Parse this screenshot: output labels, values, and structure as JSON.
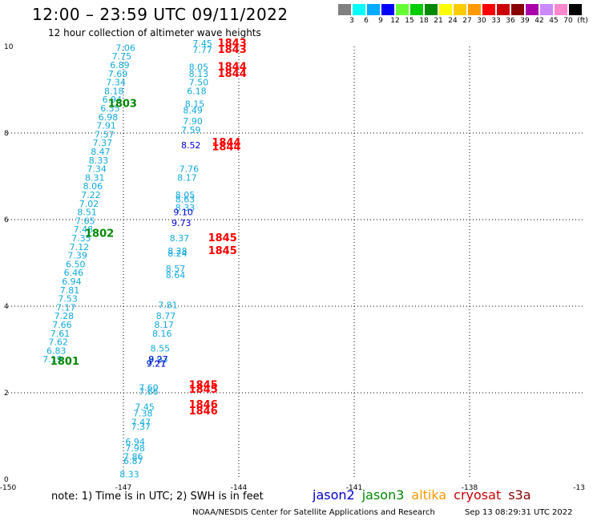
{
  "header": {
    "title": "12:00 – 23:59 UTC 09/11/2022",
    "subtitle": "12 hour collection of altimeter wave heights"
  },
  "color_scale": {
    "labels": [
      "3",
      "6",
      "9",
      "12",
      "15",
      "18",
      "21",
      "24",
      "27",
      "30",
      "33",
      "36",
      "39",
      "42",
      "45",
      "70",
      "(ft)"
    ],
    "colors": [
      "#808080",
      "#00ffff",
      "#00aaff",
      "#0000ff",
      "#66ff33",
      "#00cc00",
      "#008800",
      "#ffff00",
      "#ffcc00",
      "#ff9900",
      "#ff0000",
      "#cc0000",
      "#880000",
      "#aa00aa",
      "#cc88ff",
      "#ff88cc",
      "#000000"
    ]
  },
  "footer": {
    "note": "note: 1) Time is in UTC; 2) SWH is in feet",
    "credit": "NOAA/NESDIS Center for Satellite Applications and Research",
    "timestamp": "Sep 13 08:29:31 UTC 2022"
  },
  "satellites": [
    {
      "name": "jason2",
      "color": "#0000cc"
    },
    {
      "name": "jason3",
      "color": "#008800"
    },
    {
      "name": "altika",
      "color": "#ff9900"
    },
    {
      "name": "cryosat",
      "color": "#cc0000"
    },
    {
      "name": "s3a",
      "color": "#880000"
    }
  ],
  "chart_data": {
    "type": "scatter",
    "title": "12 hour collection of altimeter wave heights",
    "x_ticks": [
      "-150",
      "-147",
      "-144",
      "-141",
      "-138",
      "-13"
    ],
    "y_ticks": [
      "0",
      "2",
      "4",
      "6",
      "8",
      "10"
    ],
    "xlim": [
      -150,
      -135
    ],
    "ylim": [
      0,
      10
    ],
    "grid": true,
    "series": [
      {
        "color": "#11aadd",
        "points": [
          {
            "x": -147.2,
            "y": 9.9,
            "label": "7.06"
          },
          {
            "x": -147.3,
            "y": 9.7,
            "label": "7.75"
          },
          {
            "x": -147.35,
            "y": 9.5,
            "label": "6.89"
          },
          {
            "x": -147.4,
            "y": 9.3,
            "label": "7.69"
          },
          {
            "x": -147.45,
            "y": 9.1,
            "label": "7.34"
          },
          {
            "x": -147.5,
            "y": 8.9,
            "label": "8.18"
          },
          {
            "x": -147.55,
            "y": 8.7,
            "label": "6.94"
          },
          {
            "x": -147.6,
            "y": 8.5,
            "label": "6.35"
          },
          {
            "x": -147.65,
            "y": 8.3,
            "label": "6.98"
          },
          {
            "x": -147.7,
            "y": 8.1,
            "label": "7.91"
          },
          {
            "x": -147.75,
            "y": 7.9,
            "label": "7.57"
          },
          {
            "x": -147.8,
            "y": 7.7,
            "label": "7.37"
          },
          {
            "x": -147.85,
            "y": 7.5,
            "label": "8.47"
          },
          {
            "x": -147.9,
            "y": 7.3,
            "label": "8.33"
          },
          {
            "x": -147.95,
            "y": 7.1,
            "label": "7.34"
          },
          {
            "x": -148.0,
            "y": 6.9,
            "label": "8.31"
          },
          {
            "x": -148.05,
            "y": 6.7,
            "label": "8.06"
          },
          {
            "x": -148.1,
            "y": 6.5,
            "label": "7.22"
          },
          {
            "x": -148.15,
            "y": 6.3,
            "label": "7.02"
          },
          {
            "x": -148.2,
            "y": 6.1,
            "label": "8.51"
          },
          {
            "x": -148.25,
            "y": 5.9,
            "label": "7.65"
          },
          {
            "x": -148.3,
            "y": 5.7,
            "label": "7.48"
          },
          {
            "x": -148.35,
            "y": 5.5,
            "label": "7.35"
          },
          {
            "x": -148.4,
            "y": 5.3,
            "label": "7.12"
          },
          {
            "x": -148.45,
            "y": 5.1,
            "label": "7.39"
          },
          {
            "x": -148.5,
            "y": 4.9,
            "label": "6.50"
          },
          {
            "x": -148.55,
            "y": 4.7,
            "label": "6.46"
          },
          {
            "x": -148.6,
            "y": 4.5,
            "label": "6.94"
          },
          {
            "x": -148.65,
            "y": 4.3,
            "label": "7.81"
          },
          {
            "x": -148.7,
            "y": 4.1,
            "label": "7.53"
          },
          {
            "x": -148.75,
            "y": 3.9,
            "label": "7.17"
          },
          {
            "x": -148.8,
            "y": 3.7,
            "label": "7.28"
          },
          {
            "x": -148.85,
            "y": 3.5,
            "label": "7.66"
          },
          {
            "x": -148.9,
            "y": 3.3,
            "label": "7.61"
          },
          {
            "x": -148.95,
            "y": 3.1,
            "label": "7.62"
          },
          {
            "x": -149.0,
            "y": 2.9,
            "label": "6.83"
          },
          {
            "x": -149.1,
            "y": 2.7,
            "label": "7.19"
          },
          {
            "x": -145.2,
            "y": 10.0,
            "label": "7.45"
          },
          {
            "x": -145.2,
            "y": 9.85,
            "label": "7.77"
          },
          {
            "x": -145.3,
            "y": 9.45,
            "label": "8.05"
          },
          {
            "x": -145.3,
            "y": 9.3,
            "label": "8.13"
          },
          {
            "x": -145.3,
            "y": 9.1,
            "label": "7.50"
          },
          {
            "x": -145.35,
            "y": 8.9,
            "label": "6.18"
          },
          {
            "x": -145.4,
            "y": 8.6,
            "label": "8.15"
          },
          {
            "x": -145.45,
            "y": 8.45,
            "label": "8.49"
          },
          {
            "x": -145.45,
            "y": 8.2,
            "label": "7.90"
          },
          {
            "x": -145.5,
            "y": 8.0,
            "label": "7.59"
          },
          {
            "x": -145.55,
            "y": 7.1,
            "label": "7.76"
          },
          {
            "x": -145.6,
            "y": 6.9,
            "label": "8.17"
          },
          {
            "x": -145.65,
            "y": 6.5,
            "label": "8.05"
          },
          {
            "x": -145.65,
            "y": 6.4,
            "label": "8.63"
          },
          {
            "x": -145.65,
            "y": 6.2,
            "label": "8.33"
          },
          {
            "x": -145.8,
            "y": 5.5,
            "label": "8.37"
          },
          {
            "x": -145.85,
            "y": 5.2,
            "label": "8.28"
          },
          {
            "x": -145.85,
            "y": 5.15,
            "label": "8.24"
          },
          {
            "x": -145.9,
            "y": 4.8,
            "label": "8.57"
          },
          {
            "x": -145.9,
            "y": 4.65,
            "label": "8.64"
          },
          {
            "x": -146.1,
            "y": 3.95,
            "label": "7.81"
          },
          {
            "x": -146.15,
            "y": 3.7,
            "label": "8.77"
          },
          {
            "x": -146.2,
            "y": 3.5,
            "label": "8.17"
          },
          {
            "x": -146.25,
            "y": 3.3,
            "label": "8.16"
          },
          {
            "x": -146.3,
            "y": 2.95,
            "label": "8.55"
          },
          {
            "x": -146.35,
            "y": 2.7,
            "label": "8.93"
          },
          {
            "x": -146.4,
            "y": 2.6,
            "label": "7.27"
          },
          {
            "x": -146.6,
            "y": 2.05,
            "label": "7.60"
          },
          {
            "x": -146.6,
            "y": 1.95,
            "label": "7.66"
          },
          {
            "x": -146.7,
            "y": 1.6,
            "label": "7.45"
          },
          {
            "x": -146.75,
            "y": 1.45,
            "label": "7.38"
          },
          {
            "x": -146.8,
            "y": 1.25,
            "label": "7.47"
          },
          {
            "x": -146.8,
            "y": 1.15,
            "label": "7.37"
          },
          {
            "x": -146.95,
            "y": 0.8,
            "label": "6.94"
          },
          {
            "x": -146.95,
            "y": 0.65,
            "label": "7.98"
          },
          {
            "x": -147.0,
            "y": 0.45,
            "label": "7.86"
          },
          {
            "x": -147.0,
            "y": 0.35,
            "label": "6.87"
          },
          {
            "x": -147.1,
            "y": 0.05,
            "label": "8.33"
          }
        ]
      },
      {
        "color": "#0000cc",
        "points": [
          {
            "x": -145.5,
            "y": 7.65,
            "label": "8.52"
          },
          {
            "x": -145.7,
            "y": 6.1,
            "label": "9.10"
          },
          {
            "x": -145.75,
            "y": 5.85,
            "label": "9.73"
          },
          {
            "x": -146.35,
            "y": 2.7,
            "label": "9.27"
          },
          {
            "x": -146.4,
            "y": 2.6,
            "label": "9.21"
          }
        ]
      },
      {
        "color": "#008800",
        "points": [
          {
            "x": -147.4,
            "y": 8.6,
            "label": "1803"
          },
          {
            "x": -148.0,
            "y": 5.6,
            "label": "1802"
          },
          {
            "x": -148.9,
            "y": 2.65,
            "label": "1801"
          }
        ]
      },
      {
        "color": "#ff0000",
        "points": [
          {
            "x": -144.55,
            "y": 10.0,
            "label": "1843"
          },
          {
            "x": -144.55,
            "y": 9.85,
            "label": "1843"
          },
          {
            "x": -144.55,
            "y": 9.45,
            "label": "1844"
          },
          {
            "x": -144.55,
            "y": 9.3,
            "label": "1844"
          },
          {
            "x": -144.7,
            "y": 7.7,
            "label": "1844"
          },
          {
            "x": -144.7,
            "y": 7.6,
            "label": "1844"
          },
          {
            "x": -144.8,
            "y": 5.5,
            "label": "1845"
          },
          {
            "x": -144.8,
            "y": 5.2,
            "label": "1845"
          },
          {
            "x": -145.3,
            "y": 2.1,
            "label": "1845"
          },
          {
            "x": -145.3,
            "y": 2.0,
            "label": "1845"
          },
          {
            "x": -145.3,
            "y": 1.65,
            "label": "1846"
          },
          {
            "x": -145.3,
            "y": 1.5,
            "label": "1846"
          }
        ]
      }
    ]
  }
}
